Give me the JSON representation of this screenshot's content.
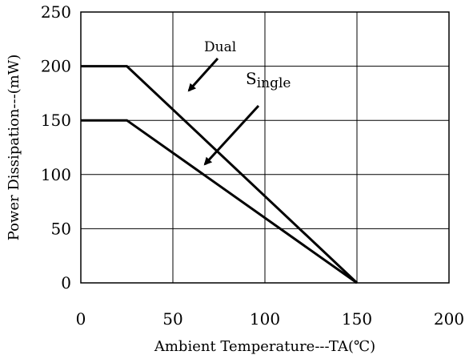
{
  "chart_data": {
    "type": "line",
    "title": "",
    "xlabel": "Ambient Temperature---TA(℃)",
    "ylabel": "Power Dissipation---(mW)",
    "xlim": [
      0,
      200
    ],
    "ylim": [
      0,
      250
    ],
    "x_ticks": [
      "0",
      "50",
      "100",
      "150",
      "200"
    ],
    "y_ticks": [
      "0",
      "50",
      "100",
      "150",
      "200",
      "250"
    ],
    "grid": true,
    "legend": "none",
    "series": [
      {
        "name": "Dual",
        "x": [
          0,
          25,
          150
        ],
        "y": [
          200,
          200,
          0
        ]
      },
      {
        "name": "Single",
        "x": [
          0,
          25,
          150
        ],
        "y": [
          150,
          150,
          0
        ]
      }
    ],
    "annotations": {
      "dual": {
        "text": "Dual"
      },
      "single": {
        "prefix": "S",
        "text": "ingle"
      }
    },
    "colors": {
      "line": "#000000",
      "grid": "#000000",
      "background": "#ffffff"
    }
  }
}
